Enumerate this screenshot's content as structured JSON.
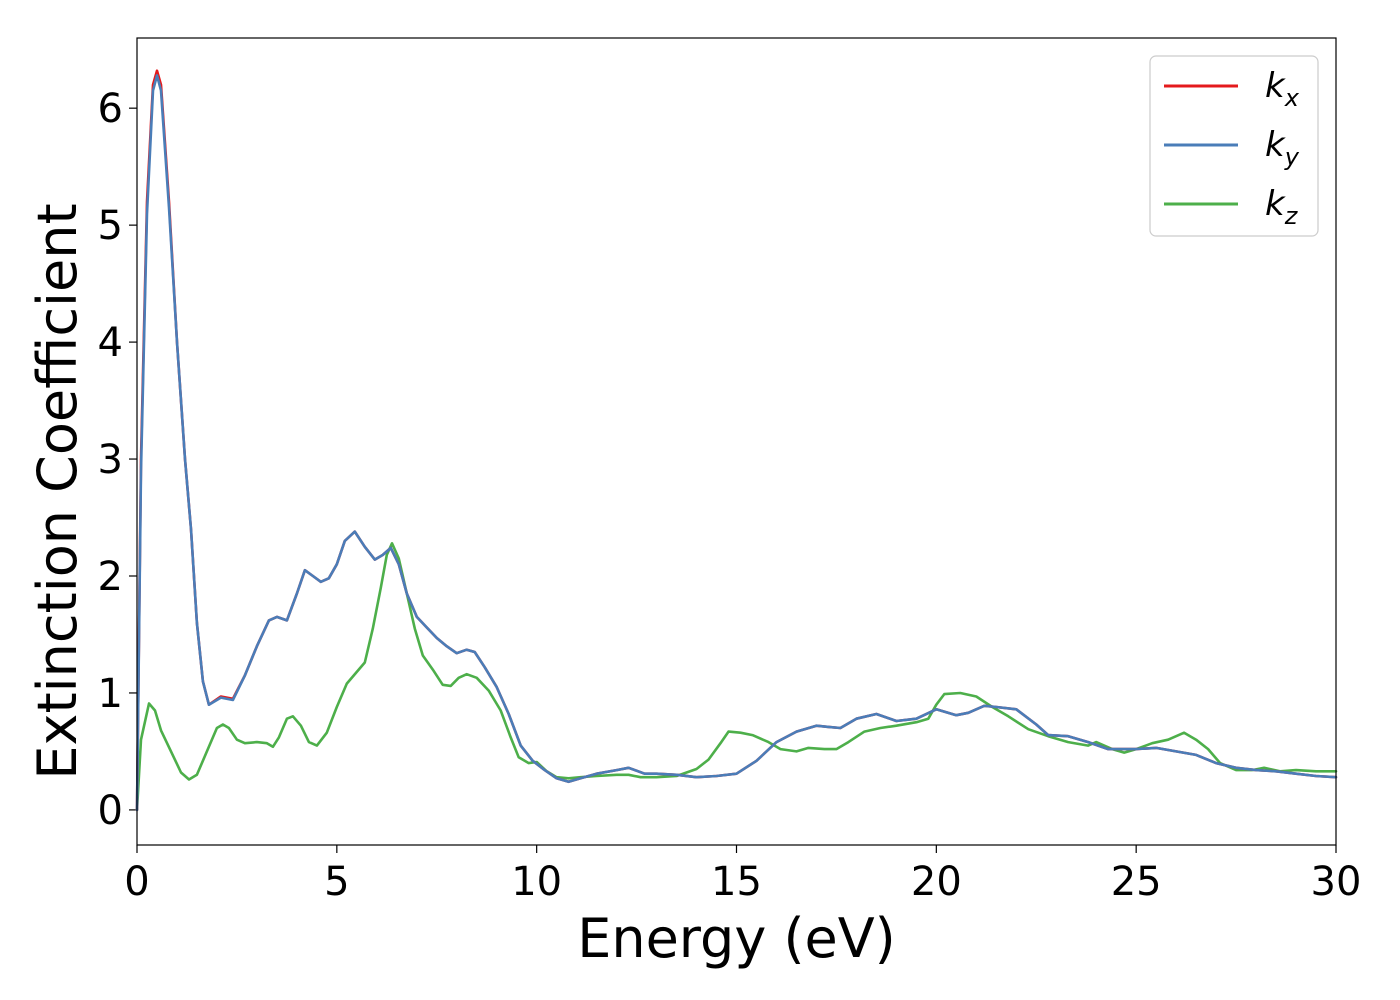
{
  "chart_data": {
    "type": "line",
    "xlabel": "Energy (eV)",
    "ylabel": "Extinction Coefficient",
    "xlim": [
      0,
      30
    ],
    "ylim": [
      -0.3,
      6.6
    ],
    "xticks": [
      0,
      5,
      10,
      15,
      20,
      25,
      30
    ],
    "yticks": [
      0,
      1,
      2,
      3,
      4,
      5,
      6
    ],
    "grid": false,
    "legend_placement": "top-right",
    "series": [
      {
        "name": "k",
        "subscript": "x",
        "color": "#e41a1c",
        "points": [
          [
            0,
            0
          ],
          [
            0.1,
            3.0
          ],
          [
            0.25,
            5.2
          ],
          [
            0.4,
            6.2
          ],
          [
            0.5,
            6.32
          ],
          [
            0.6,
            6.2
          ],
          [
            0.8,
            5.2
          ],
          [
            1.0,
            4.0
          ],
          [
            1.2,
            3.0
          ],
          [
            1.35,
            2.4
          ],
          [
            1.5,
            1.6
          ],
          [
            1.65,
            1.1
          ],
          [
            1.8,
            0.9
          ],
          [
            2.1,
            0.97
          ],
          [
            2.4,
            0.95
          ],
          [
            2.7,
            1.15
          ],
          [
            3.0,
            1.4
          ],
          [
            3.3,
            1.62
          ],
          [
            3.5,
            1.65
          ],
          [
            3.75,
            1.62
          ],
          [
            4.0,
            1.85
          ],
          [
            4.2,
            2.05
          ],
          [
            4.4,
            2.0
          ],
          [
            4.6,
            1.95
          ],
          [
            4.8,
            1.98
          ],
          [
            5.0,
            2.1
          ],
          [
            5.2,
            2.3
          ],
          [
            5.45,
            2.38
          ],
          [
            5.7,
            2.25
          ],
          [
            5.95,
            2.14
          ],
          [
            6.15,
            2.18
          ],
          [
            6.35,
            2.24
          ],
          [
            6.55,
            2.1
          ],
          [
            6.75,
            1.85
          ],
          [
            7.0,
            1.65
          ],
          [
            7.25,
            1.56
          ],
          [
            7.5,
            1.47
          ],
          [
            7.75,
            1.4
          ],
          [
            8.0,
            1.34
          ],
          [
            8.25,
            1.37
          ],
          [
            8.45,
            1.35
          ],
          [
            8.7,
            1.22
          ],
          [
            9.0,
            1.05
          ],
          [
            9.3,
            0.82
          ],
          [
            9.6,
            0.55
          ],
          [
            9.9,
            0.42
          ],
          [
            10.2,
            0.34
          ],
          [
            10.5,
            0.27
          ],
          [
            10.8,
            0.24
          ],
          [
            11.1,
            0.27
          ],
          [
            11.5,
            0.31
          ],
          [
            12.0,
            0.34
          ],
          [
            12.3,
            0.36
          ],
          [
            12.7,
            0.31
          ],
          [
            13.0,
            0.31
          ],
          [
            13.5,
            0.3
          ],
          [
            14.0,
            0.28
          ],
          [
            14.5,
            0.29
          ],
          [
            15.0,
            0.31
          ],
          [
            15.5,
            0.42
          ],
          [
            16.0,
            0.58
          ],
          [
            16.5,
            0.67
          ],
          [
            17.0,
            0.72
          ],
          [
            17.3,
            0.71
          ],
          [
            17.6,
            0.7
          ],
          [
            18.0,
            0.78
          ],
          [
            18.5,
            0.82
          ],
          [
            19.0,
            0.76
          ],
          [
            19.5,
            0.78
          ],
          [
            20.0,
            0.86
          ],
          [
            20.5,
            0.81
          ],
          [
            20.8,
            0.83
          ],
          [
            21.2,
            0.89
          ],
          [
            21.5,
            0.88
          ],
          [
            22.0,
            0.86
          ],
          [
            22.5,
            0.73
          ],
          [
            22.8,
            0.64
          ],
          [
            23.3,
            0.63
          ],
          [
            23.8,
            0.58
          ],
          [
            24.3,
            0.52
          ],
          [
            25.0,
            0.52
          ],
          [
            25.5,
            0.53
          ],
          [
            26.0,
            0.5
          ],
          [
            26.5,
            0.47
          ],
          [
            27.0,
            0.4
          ],
          [
            27.5,
            0.36
          ],
          [
            28.0,
            0.34
          ],
          [
            28.5,
            0.33
          ],
          [
            29.0,
            0.31
          ],
          [
            29.5,
            0.29
          ],
          [
            30.0,
            0.28
          ]
        ]
      },
      {
        "name": "k",
        "subscript": "y",
        "color": "#4a7db8",
        "points": [
          [
            0,
            0
          ],
          [
            0.1,
            2.9
          ],
          [
            0.25,
            5.1
          ],
          [
            0.4,
            6.15
          ],
          [
            0.5,
            6.28
          ],
          [
            0.6,
            6.15
          ],
          [
            0.8,
            5.15
          ],
          [
            1.0,
            4.0
          ],
          [
            1.2,
            3.0
          ],
          [
            1.35,
            2.4
          ],
          [
            1.5,
            1.6
          ],
          [
            1.65,
            1.1
          ],
          [
            1.8,
            0.9
          ],
          [
            2.1,
            0.96
          ],
          [
            2.4,
            0.94
          ],
          [
            2.7,
            1.15
          ],
          [
            3.0,
            1.4
          ],
          [
            3.3,
            1.62
          ],
          [
            3.5,
            1.65
          ],
          [
            3.75,
            1.62
          ],
          [
            4.0,
            1.85
          ],
          [
            4.2,
            2.05
          ],
          [
            4.4,
            2.0
          ],
          [
            4.6,
            1.95
          ],
          [
            4.8,
            1.98
          ],
          [
            5.0,
            2.1
          ],
          [
            5.2,
            2.3
          ],
          [
            5.45,
            2.38
          ],
          [
            5.7,
            2.25
          ],
          [
            5.95,
            2.14
          ],
          [
            6.15,
            2.18
          ],
          [
            6.35,
            2.24
          ],
          [
            6.55,
            2.1
          ],
          [
            6.75,
            1.85
          ],
          [
            7.0,
            1.65
          ],
          [
            7.25,
            1.56
          ],
          [
            7.5,
            1.47
          ],
          [
            7.75,
            1.4
          ],
          [
            8.0,
            1.34
          ],
          [
            8.25,
            1.37
          ],
          [
            8.45,
            1.35
          ],
          [
            8.7,
            1.22
          ],
          [
            9.0,
            1.05
          ],
          [
            9.3,
            0.82
          ],
          [
            9.6,
            0.55
          ],
          [
            9.9,
            0.42
          ],
          [
            10.2,
            0.34
          ],
          [
            10.5,
            0.27
          ],
          [
            10.8,
            0.24
          ],
          [
            11.1,
            0.27
          ],
          [
            11.5,
            0.31
          ],
          [
            12.0,
            0.34
          ],
          [
            12.3,
            0.36
          ],
          [
            12.7,
            0.31
          ],
          [
            13.0,
            0.31
          ],
          [
            13.5,
            0.3
          ],
          [
            14.0,
            0.28
          ],
          [
            14.5,
            0.29
          ],
          [
            15.0,
            0.31
          ],
          [
            15.5,
            0.42
          ],
          [
            16.0,
            0.58
          ],
          [
            16.5,
            0.67
          ],
          [
            17.0,
            0.72
          ],
          [
            17.3,
            0.71
          ],
          [
            17.6,
            0.7
          ],
          [
            18.0,
            0.78
          ],
          [
            18.5,
            0.82
          ],
          [
            19.0,
            0.76
          ],
          [
            19.5,
            0.78
          ],
          [
            20.0,
            0.86
          ],
          [
            20.5,
            0.81
          ],
          [
            20.8,
            0.83
          ],
          [
            21.2,
            0.89
          ],
          [
            21.5,
            0.88
          ],
          [
            22.0,
            0.86
          ],
          [
            22.5,
            0.73
          ],
          [
            22.8,
            0.64
          ],
          [
            23.3,
            0.63
          ],
          [
            23.8,
            0.58
          ],
          [
            24.3,
            0.52
          ],
          [
            25.0,
            0.52
          ],
          [
            25.5,
            0.53
          ],
          [
            26.0,
            0.5
          ],
          [
            26.5,
            0.47
          ],
          [
            27.0,
            0.4
          ],
          [
            27.5,
            0.36
          ],
          [
            28.0,
            0.34
          ],
          [
            28.5,
            0.33
          ],
          [
            29.0,
            0.31
          ],
          [
            29.5,
            0.29
          ],
          [
            30.0,
            0.28
          ]
        ]
      },
      {
        "name": "k",
        "subscript": "z",
        "color": "#4daf4a",
        "points": [
          [
            0,
            0
          ],
          [
            0.1,
            0.6
          ],
          [
            0.3,
            0.91
          ],
          [
            0.45,
            0.85
          ],
          [
            0.6,
            0.68
          ],
          [
            0.85,
            0.5
          ],
          [
            1.1,
            0.32
          ],
          [
            1.3,
            0.26
          ],
          [
            1.5,
            0.3
          ],
          [
            1.75,
            0.5
          ],
          [
            2.0,
            0.7
          ],
          [
            2.15,
            0.73
          ],
          [
            2.3,
            0.7
          ],
          [
            2.5,
            0.6
          ],
          [
            2.7,
            0.57
          ],
          [
            3.0,
            0.58
          ],
          [
            3.25,
            0.57
          ],
          [
            3.4,
            0.54
          ],
          [
            3.55,
            0.62
          ],
          [
            3.75,
            0.78
          ],
          [
            3.9,
            0.8
          ],
          [
            4.1,
            0.72
          ],
          [
            4.3,
            0.58
          ],
          [
            4.5,
            0.55
          ],
          [
            4.75,
            0.66
          ],
          [
            5.0,
            0.88
          ],
          [
            5.25,
            1.08
          ],
          [
            5.5,
            1.18
          ],
          [
            5.7,
            1.26
          ],
          [
            5.9,
            1.55
          ],
          [
            6.1,
            1.9
          ],
          [
            6.25,
            2.18
          ],
          [
            6.38,
            2.28
          ],
          [
            6.55,
            2.15
          ],
          [
            6.75,
            1.85
          ],
          [
            6.95,
            1.55
          ],
          [
            7.15,
            1.32
          ],
          [
            7.4,
            1.2
          ],
          [
            7.65,
            1.07
          ],
          [
            7.85,
            1.06
          ],
          [
            8.05,
            1.13
          ],
          [
            8.25,
            1.16
          ],
          [
            8.5,
            1.13
          ],
          [
            8.8,
            1.02
          ],
          [
            9.1,
            0.85
          ],
          [
            9.35,
            0.62
          ],
          [
            9.55,
            0.45
          ],
          [
            9.8,
            0.4
          ],
          [
            10.0,
            0.41
          ],
          [
            10.25,
            0.33
          ],
          [
            10.5,
            0.28
          ],
          [
            10.8,
            0.27
          ],
          [
            11.1,
            0.28
          ],
          [
            11.5,
            0.29
          ],
          [
            12.0,
            0.3
          ],
          [
            12.3,
            0.3
          ],
          [
            12.6,
            0.28
          ],
          [
            13.0,
            0.28
          ],
          [
            13.5,
            0.29
          ],
          [
            14.0,
            0.35
          ],
          [
            14.3,
            0.43
          ],
          [
            14.6,
            0.57
          ],
          [
            14.8,
            0.67
          ],
          [
            15.1,
            0.66
          ],
          [
            15.4,
            0.64
          ],
          [
            15.8,
            0.58
          ],
          [
            16.1,
            0.52
          ],
          [
            16.5,
            0.5
          ],
          [
            16.8,
            0.53
          ],
          [
            17.2,
            0.52
          ],
          [
            17.5,
            0.52
          ],
          [
            17.8,
            0.58
          ],
          [
            18.2,
            0.67
          ],
          [
            18.6,
            0.7
          ],
          [
            19.0,
            0.72
          ],
          [
            19.5,
            0.75
          ],
          [
            19.8,
            0.78
          ],
          [
            20.0,
            0.9
          ],
          [
            20.2,
            0.99
          ],
          [
            20.6,
            1.0
          ],
          [
            21.0,
            0.97
          ],
          [
            21.4,
            0.88
          ],
          [
            21.8,
            0.8
          ],
          [
            22.3,
            0.69
          ],
          [
            22.8,
            0.63
          ],
          [
            23.3,
            0.58
          ],
          [
            23.8,
            0.55
          ],
          [
            24.0,
            0.58
          ],
          [
            24.4,
            0.52
          ],
          [
            24.7,
            0.49
          ],
          [
            25.0,
            0.52
          ],
          [
            25.4,
            0.57
          ],
          [
            25.8,
            0.6
          ],
          [
            26.2,
            0.66
          ],
          [
            26.5,
            0.6
          ],
          [
            26.8,
            0.52
          ],
          [
            27.1,
            0.4
          ],
          [
            27.5,
            0.34
          ],
          [
            27.9,
            0.34
          ],
          [
            28.2,
            0.36
          ],
          [
            28.6,
            0.33
          ],
          [
            29.0,
            0.34
          ],
          [
            29.5,
            0.33
          ],
          [
            30.0,
            0.33
          ]
        ]
      }
    ]
  }
}
